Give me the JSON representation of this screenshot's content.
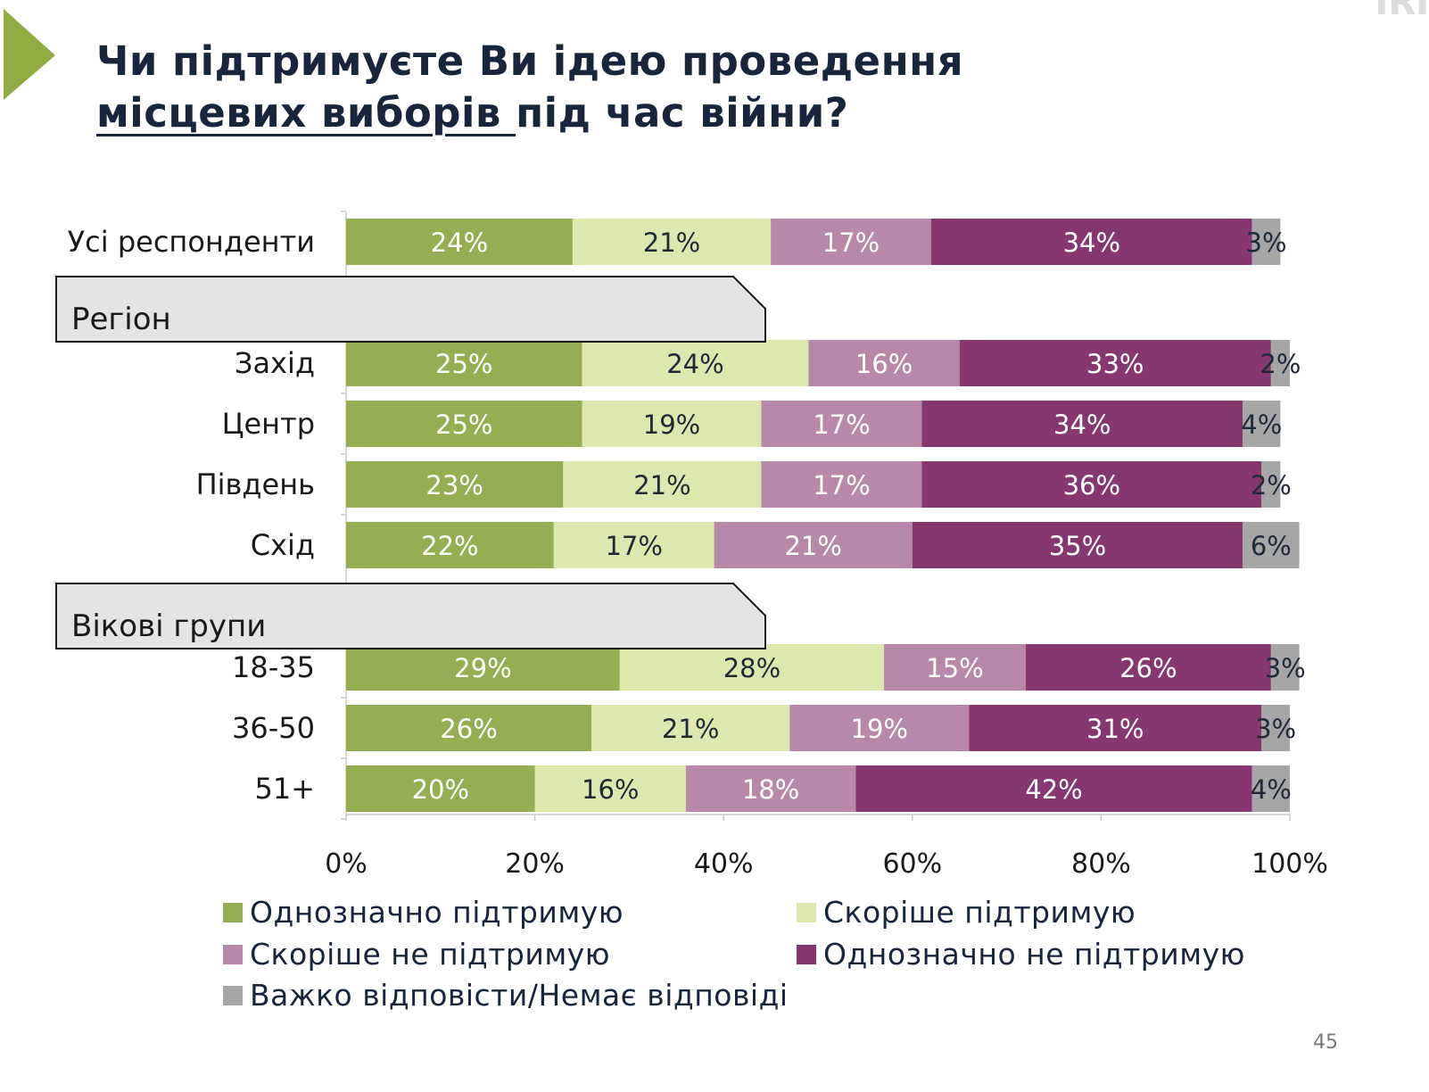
{
  "slide": {
    "title_line1": "Чи підтримуєте Ви ідею проведення",
    "title_line2_underlined": "місцевих виборів ",
    "title_line2_rest": "під час війни?",
    "corner_mark": "IRI",
    "page_number": "45",
    "accent_color": "#8fac43"
  },
  "chart_data": {
    "type": "bar",
    "orientation": "horizontal",
    "stacked": true,
    "xlim": [
      0,
      100
    ],
    "x_ticks": [
      "0%",
      "20%",
      "40%",
      "60%",
      "80%",
      "100%"
    ],
    "groups": [
      {
        "header": "",
        "rows": [
          {
            "label": "Усі респонденти",
            "values": [
              24,
              21,
              17,
              34,
              3
            ]
          }
        ]
      },
      {
        "header": "Регіон",
        "rows": [
          {
            "label": "Захід",
            "values": [
              25,
              24,
              16,
              33,
              2
            ]
          },
          {
            "label": "Центр",
            "values": [
              25,
              19,
              17,
              34,
              4
            ]
          },
          {
            "label": "Південь",
            "values": [
              23,
              21,
              17,
              36,
              2
            ]
          },
          {
            "label": "Схід",
            "values": [
              22,
              17,
              21,
              35,
              6
            ]
          }
        ]
      },
      {
        "header": "Вікові групи",
        "rows": [
          {
            "label": "18-35",
            "values": [
              29,
              28,
              15,
              26,
              3
            ]
          },
          {
            "label": "36-50",
            "values": [
              26,
              21,
              19,
              31,
              3
            ]
          },
          {
            "label": "51+",
            "values": [
              20,
              16,
              18,
              42,
              4
            ]
          }
        ]
      }
    ],
    "series": [
      {
        "name": "Однозначно підтримую",
        "color": "#95ae52",
        "label_color": "#ffffff"
      },
      {
        "name": "Скоріше підтримую",
        "color": "#dce8ae",
        "label_color": "#1f2937"
      },
      {
        "name": "Скоріше не підтримую",
        "color": "#b788a9",
        "label_color": "#ffffff"
      },
      {
        "name": "Однозначно не підтримую",
        "color": "#86376f",
        "label_color": "#ffffff"
      },
      {
        "name": "Важко відповісти/Немає відповіді",
        "color": "#a6a6a6",
        "label_color": "#1f2937"
      }
    ],
    "legend_position": "bottom",
    "grid": false
  }
}
